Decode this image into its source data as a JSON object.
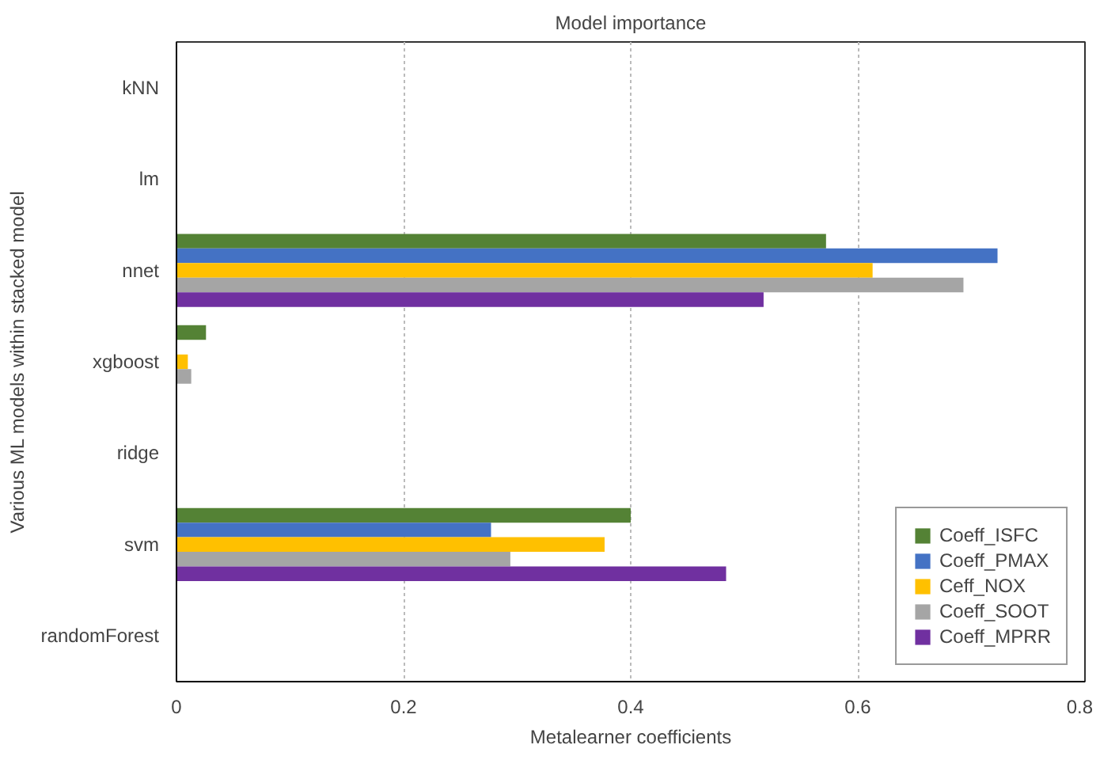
{
  "chart_data": {
    "type": "bar",
    "orientation": "horizontal",
    "title": "Model importance",
    "xlabel": "Metalearner coefficients",
    "ylabel": "Various ML models within stacked model",
    "categories": [
      "kNN",
      "lm",
      "nnet",
      "xgboost",
      "ridge",
      "svm",
      "randomForest"
    ],
    "series": [
      {
        "name": "Coeff_ISFC",
        "color": "#548235",
        "values": [
          0,
          0,
          0.572,
          0.026,
          0,
          0.4,
          0
        ]
      },
      {
        "name": "Coeff_PMAX",
        "color": "#4472c4",
        "values": [
          0,
          0,
          0.723,
          0,
          0,
          0.277,
          0
        ]
      },
      {
        "name": "Ceff_NOX",
        "color": "#ffc000",
        "values": [
          0,
          0,
          0.613,
          0.01,
          0,
          0.377,
          0
        ]
      },
      {
        "name": "Coeff_SOOT",
        "color": "#a5a5a5",
        "values": [
          0,
          0,
          0.693,
          0.013,
          0,
          0.294,
          0
        ]
      },
      {
        "name": "Coeff_MPRR",
        "color": "#7030a0",
        "values": [
          0,
          0,
          0.517,
          0,
          0,
          0.484,
          0
        ]
      }
    ],
    "xlim": [
      0,
      0.8
    ],
    "xticks": [
      0,
      0.2,
      0.4,
      0.6,
      0.8
    ],
    "grid": "x",
    "legend": "bottom right"
  }
}
